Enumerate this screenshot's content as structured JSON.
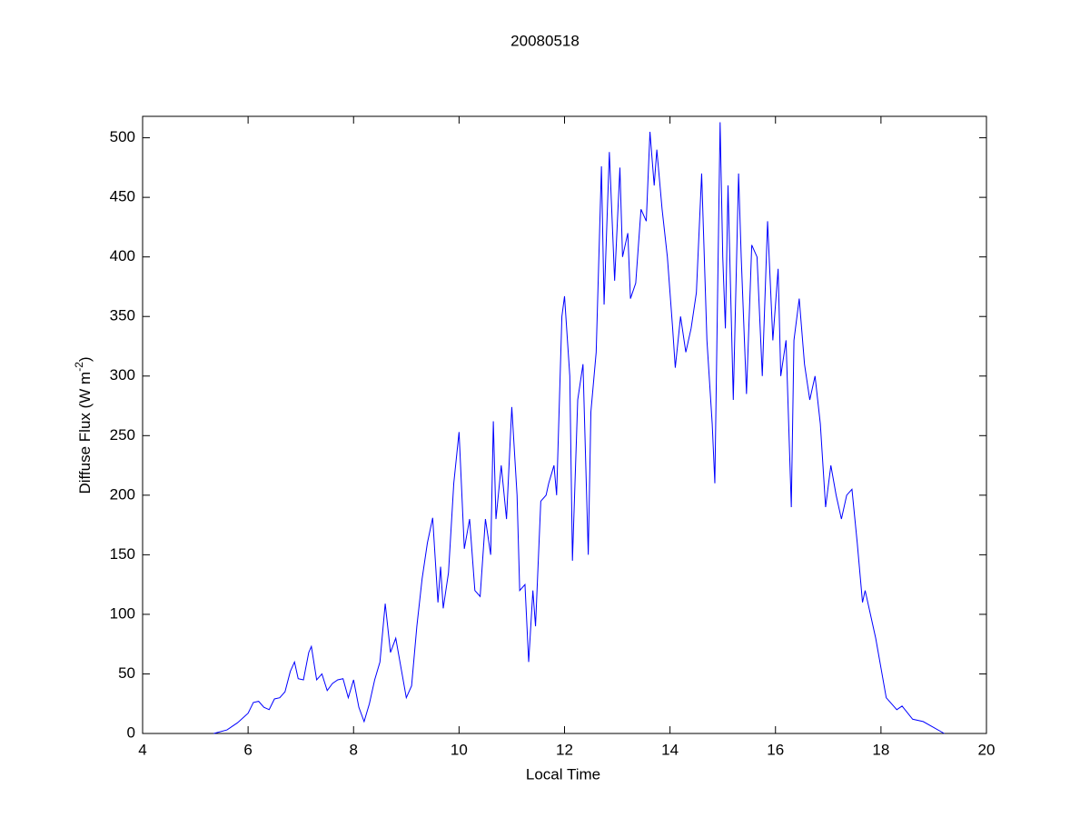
{
  "chart_data": {
    "type": "line",
    "title": "20080518",
    "xlabel": "Local Time",
    "ylabel": [
      "Diffuse Flux (W m",
      "-2",
      ")"
    ],
    "xlim": [
      4,
      20
    ],
    "ylim": [
      0,
      518
    ],
    "xticks": [
      4,
      6,
      8,
      10,
      12,
      14,
      16,
      18,
      20
    ],
    "yticks": [
      0,
      50,
      100,
      150,
      200,
      250,
      300,
      350,
      400,
      450,
      500
    ],
    "grid": false,
    "series": [
      {
        "color": "#0000ff",
        "x": [
          5.35,
          5.6,
          5.8,
          6.0,
          6.1,
          6.2,
          6.3,
          6.4,
          6.5,
          6.6,
          6.7,
          6.8,
          6.88,
          6.95,
          7.05,
          7.15,
          7.2,
          7.3,
          7.4,
          7.5,
          7.6,
          7.7,
          7.8,
          7.9,
          8.0,
          8.1,
          8.2,
          8.3,
          8.4,
          8.5,
          8.6,
          8.7,
          8.8,
          8.9,
          9.0,
          9.1,
          9.2,
          9.3,
          9.4,
          9.5,
          9.6,
          9.65,
          9.7,
          9.8,
          9.9,
          10.0,
          10.1,
          10.2,
          10.3,
          10.4,
          10.5,
          10.6,
          10.65,
          10.7,
          10.8,
          10.9,
          11.0,
          11.1,
          11.15,
          11.25,
          11.32,
          11.4,
          11.45,
          11.55,
          11.65,
          11.7,
          11.8,
          11.85,
          11.95,
          12.0,
          12.1,
          12.15,
          12.25,
          12.35,
          12.45,
          12.5,
          12.6,
          12.7,
          12.75,
          12.85,
          12.95,
          13.05,
          13.1,
          13.2,
          13.25,
          13.35,
          13.45,
          13.55,
          13.62,
          13.7,
          13.75,
          13.85,
          13.95,
          14.0,
          14.05,
          14.1,
          14.2,
          14.3,
          14.4,
          14.5,
          14.6,
          14.7,
          14.8,
          14.85,
          14.95,
          15.0,
          15.05,
          15.1,
          15.2,
          15.3,
          15.35,
          15.45,
          15.55,
          15.65,
          15.75,
          15.85,
          15.95,
          16.05,
          16.1,
          16.2,
          16.3,
          16.35,
          16.45,
          16.55,
          16.65,
          16.75,
          16.85,
          16.95,
          17.05,
          17.15,
          17.25,
          17.35,
          17.45,
          17.55,
          17.65,
          17.7,
          17.8,
          17.9,
          18.0,
          18.1,
          18.3,
          18.4,
          18.6,
          18.8,
          19.0,
          19.2
        ],
        "values": [
          0,
          3,
          9,
          17,
          26,
          27,
          22,
          20,
          29,
          30,
          35,
          52,
          60,
          46,
          45,
          68,
          73,
          45,
          50,
          36,
          42,
          45,
          46,
          30,
          45,
          22,
          10,
          25,
          45,
          60,
          109,
          68,
          80,
          55,
          30,
          40,
          90,
          130,
          160,
          181,
          110,
          140,
          105,
          135,
          210,
          253,
          155,
          180,
          120,
          115,
          180,
          150,
          262,
          180,
          225,
          180,
          274,
          200,
          120,
          125,
          60,
          120,
          90,
          195,
          200,
          210,
          225,
          200,
          350,
          367,
          300,
          145,
          280,
          310,
          150,
          270,
          320,
          476,
          360,
          488,
          380,
          475,
          400,
          420,
          365,
          378,
          440,
          430,
          505,
          460,
          490,
          440,
          400,
          370,
          340,
          307,
          350,
          320,
          340,
          370,
          470,
          330,
          260,
          210,
          513,
          400,
          340,
          460,
          280,
          470,
          400,
          285,
          410,
          400,
          300,
          430,
          330,
          390,
          300,
          330,
          190,
          330,
          365,
          310,
          280,
          300,
          260,
          190,
          225,
          200,
          180,
          200,
          205,
          160,
          110,
          120,
          100,
          80,
          55,
          30,
          20,
          23,
          12,
          10,
          5,
          0
        ]
      }
    ]
  }
}
